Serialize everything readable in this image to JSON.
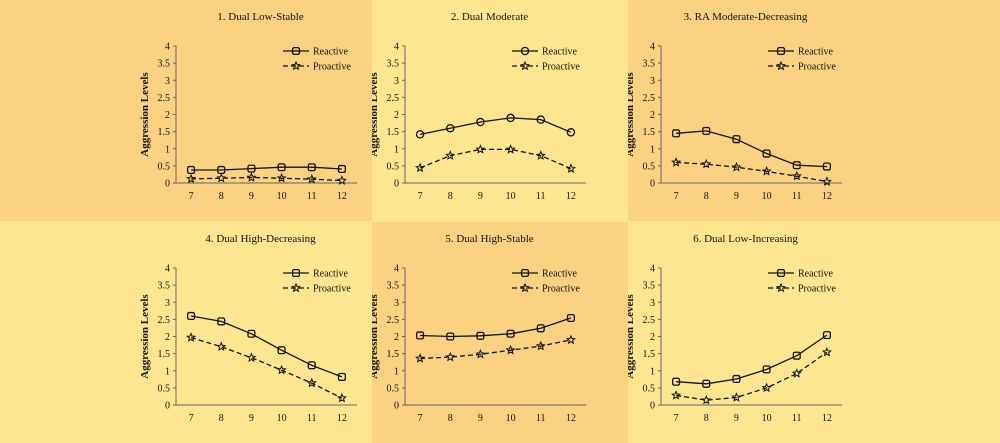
{
  "colors": {
    "light": "#fde68f",
    "dark": "#fbd282",
    "line": "#111111"
  },
  "chart_data": [
    {
      "type": "line",
      "title": "1. Dual Low-Stable",
      "ylabel": "Aggression Levels",
      "xlabel": "",
      "categories": [
        "7",
        "8",
        "9",
        "10",
        "11",
        "12"
      ],
      "yticks": [
        "0",
        "0.5",
        "1",
        "1.5",
        "2",
        "2.5",
        "3",
        "3.5",
        "4"
      ],
      "ylim": [
        0,
        4
      ],
      "background": "dark",
      "legend_position": "top-right",
      "series": [
        {
          "name": "Reactive",
          "style": "solid",
          "marker": "square",
          "values": [
            0.38,
            0.38,
            0.42,
            0.46,
            0.46,
            0.41
          ]
        },
        {
          "name": "Proactive",
          "style": "dashed",
          "marker": "star",
          "values": [
            0.12,
            0.14,
            0.16,
            0.14,
            0.11,
            0.07
          ]
        }
      ]
    },
    {
      "type": "line",
      "title": "2. Dual Moderate",
      "ylabel": "Aggression Levels",
      "xlabel": "",
      "categories": [
        "7",
        "8",
        "9",
        "10",
        "11",
        "12"
      ],
      "yticks": [
        "0",
        "0.5",
        "1",
        "1.5",
        "2",
        "2.5",
        "3",
        "3.5",
        "4"
      ],
      "ylim": [
        0,
        4
      ],
      "background": "light",
      "legend_position": "top-right",
      "series": [
        {
          "name": "Reactive",
          "style": "solid",
          "marker": "circle",
          "values": [
            1.42,
            1.6,
            1.78,
            1.9,
            1.85,
            1.48
          ]
        },
        {
          "name": "Proactive",
          "style": "dashed",
          "marker": "star",
          "values": [
            0.44,
            0.8,
            0.98,
            0.98,
            0.8,
            0.42
          ]
        }
      ]
    },
    {
      "type": "line",
      "title": "3. RA Moderate-Decreasing",
      "ylabel": "Aggression Levels",
      "xlabel": "",
      "categories": [
        "7",
        "8",
        "9",
        "10",
        "11",
        "12"
      ],
      "yticks": [
        "0",
        "0.5",
        "1",
        "1.5",
        "2",
        "2.5",
        "3",
        "3.5",
        "4"
      ],
      "ylim": [
        0,
        4
      ],
      "background": "dark",
      "legend_position": "top-right",
      "series": [
        {
          "name": "Reactive",
          "style": "solid",
          "marker": "square",
          "values": [
            1.45,
            1.52,
            1.28,
            0.86,
            0.52,
            0.48
          ]
        },
        {
          "name": "Proactive",
          "style": "dashed",
          "marker": "star",
          "values": [
            0.6,
            0.55,
            0.46,
            0.34,
            0.2,
            0.04
          ]
        }
      ]
    },
    {
      "type": "line",
      "title": "4. Dual High-Decreasing",
      "ylabel": "Aggression Levels",
      "xlabel": "",
      "categories": [
        "7",
        "8",
        "9",
        "10",
        "11",
        "12"
      ],
      "yticks": [
        "0",
        "0.5",
        "1",
        "1.5",
        "2",
        "2.5",
        "3",
        "3.5",
        "4"
      ],
      "ylim": [
        0,
        4
      ],
      "background": "light",
      "legend_position": "top-right",
      "series": [
        {
          "name": "Reactive",
          "style": "solid",
          "marker": "square",
          "values": [
            2.6,
            2.44,
            2.08,
            1.6,
            1.16,
            0.82
          ]
        },
        {
          "name": "Proactive",
          "style": "dashed",
          "marker": "star",
          "values": [
            1.97,
            1.7,
            1.38,
            1.02,
            0.64,
            0.2
          ]
        }
      ]
    },
    {
      "type": "line",
      "title": "5. Dual High-Stable",
      "ylabel": "Aggression Levels",
      "xlabel": "",
      "categories": [
        "7",
        "8",
        "9",
        "10",
        "11",
        "12"
      ],
      "yticks": [
        "0",
        "0.5",
        "1",
        "1.5",
        "2",
        "2.5",
        "3",
        "3.5",
        "4"
      ],
      "ylim": [
        0,
        4
      ],
      "background": "dark",
      "legend_position": "top-right",
      "series": [
        {
          "name": "Reactive",
          "style": "solid",
          "marker": "square",
          "values": [
            2.03,
            2.0,
            2.02,
            2.08,
            2.24,
            2.54
          ]
        },
        {
          "name": "Proactive",
          "style": "dashed",
          "marker": "star",
          "values": [
            1.36,
            1.4,
            1.48,
            1.6,
            1.72,
            1.9
          ]
        }
      ]
    },
    {
      "type": "line",
      "title": "6. Dual Low-Increasing",
      "ylabel": "Aggression Levels",
      "xlabel": "",
      "categories": [
        "7",
        "8",
        "9",
        "10",
        "11",
        "12"
      ],
      "yticks": [
        "0",
        "0.5",
        "1",
        "1.5",
        "2",
        "2.5",
        "3",
        "3.5",
        "4"
      ],
      "ylim": [
        0,
        4
      ],
      "background": "light",
      "legend_position": "top-right",
      "series": [
        {
          "name": "Reactive",
          "style": "solid",
          "marker": "square",
          "values": [
            0.68,
            0.62,
            0.76,
            1.04,
            1.44,
            2.04
          ]
        },
        {
          "name": "Proactive",
          "style": "dashed",
          "marker": "star",
          "values": [
            0.28,
            0.14,
            0.22,
            0.5,
            0.92,
            1.54
          ]
        }
      ]
    }
  ]
}
